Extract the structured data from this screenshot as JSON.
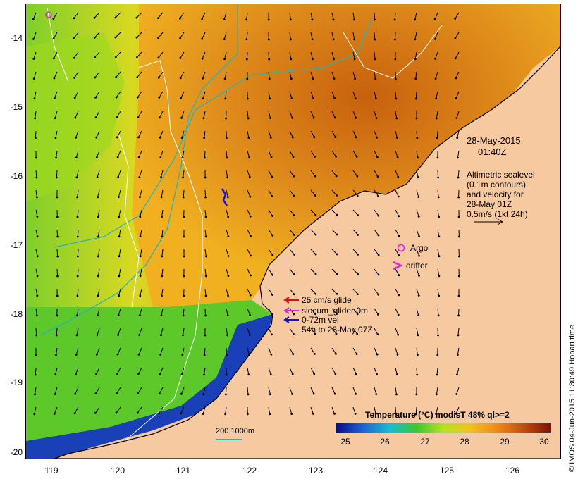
{
  "timestamp": {
    "date": "28-May-2015",
    "time": "01:40Z"
  },
  "altimetry_note": [
    "Altimetric sealevel",
    "(0.1m contours)",
    "and velocity for",
    "28-May 01Z",
    "0.5m/s (1kt 24h)"
  ],
  "legend": {
    "argo": "Argo",
    "drifter": "drifter",
    "glide": "25 cm/s glide",
    "slocum": "slocum_glider 0m",
    "vel": "0-72m vel",
    "period": "54h to 28-May 07Z"
  },
  "colorbar": {
    "title": "Temperature (°C) modisT 48% ql>=2",
    "ticks": [
      "25",
      "26",
      "27",
      "28",
      "29",
      "30"
    ],
    "colors": [
      "#0a0a8c",
      "#1c64d2",
      "#16bdd0",
      "#3ec82a",
      "#b8e21a",
      "#f2c21a",
      "#f08a14",
      "#c84a0c",
      "#7a1404"
    ]
  },
  "scale": {
    "label": "200  1000m"
  },
  "axes": {
    "lon_ticks": [
      "119",
      "120",
      "121",
      "122",
      "123",
      "124",
      "125",
      "126"
    ],
    "lat_ticks": [
      "-14",
      "-15",
      "-16",
      "-17",
      "-18",
      "-19",
      "-20"
    ]
  },
  "credit": "© IMOS 04-Jun-2015 11:30:49 Hobart time",
  "colors": {
    "land": "#f7c9a0",
    "contour": "#ffffff",
    "isobath": "#2ab3b3",
    "argo": "#e020e0",
    "glider": "#1010e0",
    "vector": "#000000"
  }
}
